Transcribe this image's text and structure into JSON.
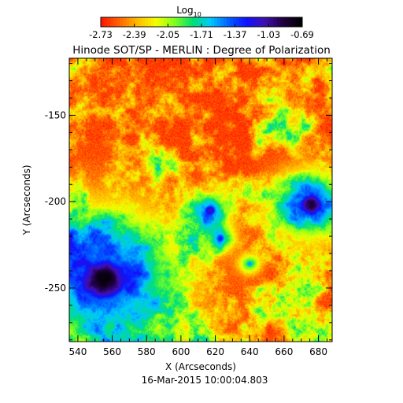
{
  "chart_data": {
    "type": "heatmap",
    "title": "Hinode SOT/SP - MERLIN : Degree of Polarization",
    "footer": "16-Mar-2015 10:00:04.803",
    "xlabel": "X (Arcseconds)",
    "ylabel": "Y (Arcseconds)",
    "xlim": [
      535,
      688
    ],
    "ylim": [
      -281,
      -117
    ],
    "xticks": [
      540,
      560,
      580,
      600,
      620,
      640,
      660,
      680
    ],
    "yticks": [
      -150,
      -200,
      -250
    ],
    "colorbar": {
      "label": "Log",
      "label_subscript": "10",
      "range": [
        -2.73,
        -0.69
      ],
      "ticks": [
        "-2.73",
        "-2.39",
        "-2.05",
        "-1.71",
        "-1.37",
        "-1.03",
        "-0.69"
      ],
      "colormap": [
        "#ff1a00",
        "#ff6a00",
        "#ffbf00",
        "#f4ff00",
        "#80ff20",
        "#00e070",
        "#00c8ff",
        "#0060ff",
        "#1010ff",
        "#4010b0",
        "#200040",
        "#000000"
      ]
    },
    "features": [
      {
        "kind": "sunspot",
        "x": 555,
        "y": -245,
        "strength": -0.72,
        "radius": 20
      },
      {
        "kind": "pore",
        "x": 676,
        "y": -202,
        "strength": -0.95,
        "radius": 10
      },
      {
        "kind": "pore",
        "x": 617,
        "y": -205,
        "strength": -1.05,
        "radius": 5
      },
      {
        "kind": "pore",
        "x": 623,
        "y": -221,
        "strength": -1.3,
        "radius": 4
      },
      {
        "kind": "pore",
        "x": 640,
        "y": -236,
        "strength": -1.4,
        "radius": 3
      }
    ]
  }
}
